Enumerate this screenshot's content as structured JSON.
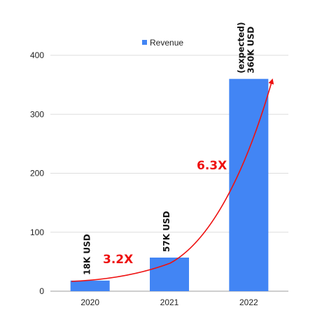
{
  "chart_data": {
    "type": "bar",
    "title": "",
    "xlabel": "",
    "ylabel": "",
    "categories": [
      "2020",
      "2021",
      "2022"
    ],
    "series": [
      {
        "name": "Revenue",
        "values": [
          18,
          57,
          360
        ],
        "color": "#4285F4"
      }
    ],
    "ylim": [
      0,
      400
    ],
    "yticks": [
      "0",
      "100",
      "200",
      "300",
      "400"
    ],
    "legend": "top-center",
    "grid": true,
    "data_labels": [
      {
        "lines": [
          "18K USD"
        ]
      },
      {
        "lines": [
          "57K USD"
        ]
      },
      {
        "lines": [
          "360K USD",
          "(expected)"
        ]
      }
    ],
    "annotations": [
      {
        "text": "3.2X",
        "color": "#EE1111"
      },
      {
        "text": "6.3X",
        "color": "#EE1111"
      }
    ],
    "trend_arrow_color": "#EE1111"
  }
}
